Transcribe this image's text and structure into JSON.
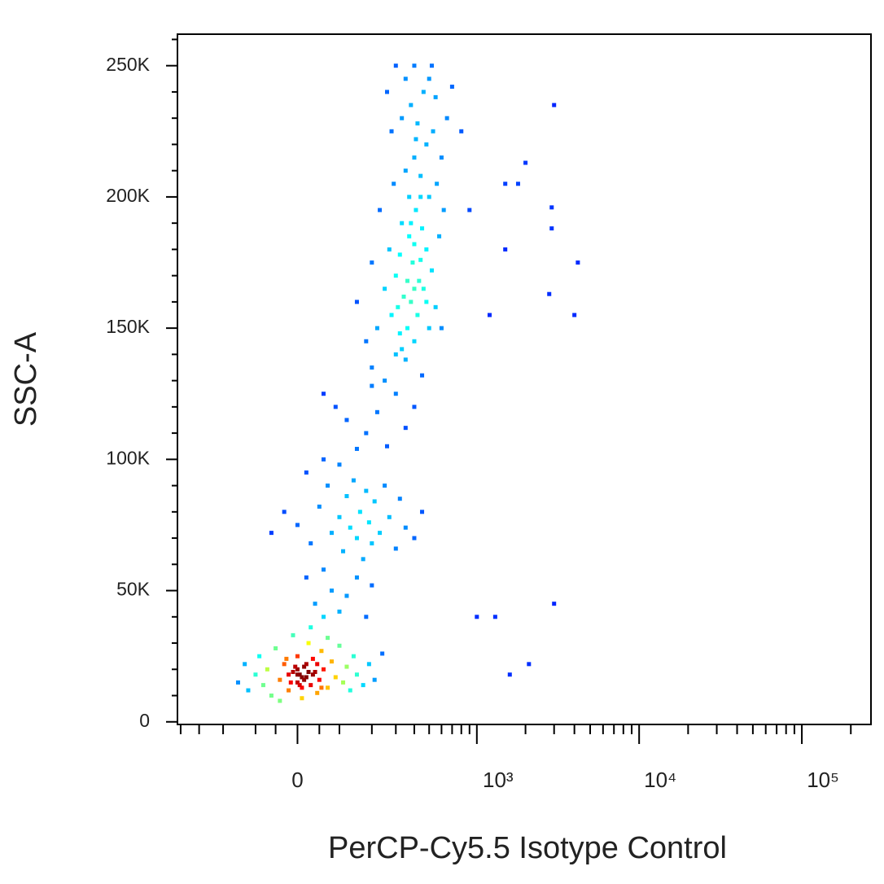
{
  "chart_data": {
    "type": "scatter",
    "x_label": "PerCP-Cy5.5 Isotype Control",
    "y_label": "SSC-A",
    "xscale": "biexponential",
    "xlim": [
      -420,
      266000
    ],
    "ylim": [
      -1000,
      262000
    ],
    "xticks": [
      0,
      {
        "value": 1000,
        "label": "10³"
      },
      {
        "value": 10000,
        "label": "10⁴"
      },
      {
        "value": 100000,
        "label": "10⁵"
      }
    ],
    "xminorticks": [
      -400,
      -300,
      -200,
      -100,
      -50,
      50,
      100,
      200,
      300,
      400,
      500,
      600,
      700,
      800,
      900,
      2000,
      3000,
      4000,
      5000,
      6000,
      7000,
      8000,
      9000,
      20000,
      30000,
      40000,
      50000,
      60000,
      70000,
      80000,
      90000,
      200000
    ],
    "yticks": [
      0,
      {
        "value": 50000,
        "label": "50K"
      },
      {
        "value": 100000,
        "label": "100K"
      },
      {
        "value": 150000,
        "label": "150K"
      },
      {
        "value": 200000,
        "label": "200K"
      },
      {
        "value": 250000,
        "label": "250K"
      }
    ],
    "yminorticks": [
      10000,
      20000,
      30000,
      40000,
      60000,
      70000,
      80000,
      90000,
      110000,
      120000,
      130000,
      140000,
      160000,
      170000,
      180000,
      190000,
      210000,
      220000,
      230000,
      240000,
      260000
    ],
    "x": [
      -150,
      -130,
      -120,
      -100,
      -90,
      -80,
      -70,
      -60,
      -50,
      -40,
      -30,
      -20,
      -10,
      0,
      0,
      5,
      10,
      15,
      20,
      25,
      30,
      35,
      40,
      45,
      50,
      55,
      60,
      70,
      80,
      90,
      100,
      110,
      120,
      130,
      140,
      150,
      170,
      190,
      210,
      240,
      -10,
      30,
      60,
      -40,
      10,
      70,
      0,
      10,
      -20,
      20,
      5,
      -5,
      15,
      25,
      -15,
      35,
      45,
      -25,
      55,
      0,
      40,
      80,
      100,
      150,
      60,
      120,
      180,
      200,
      20,
      0,
      30,
      50,
      70,
      80,
      100,
      110,
      120,
      130,
      140,
      150,
      160,
      170,
      180,
      190,
      200,
      210,
      230,
      250,
      270,
      300,
      320,
      350,
      400,
      450,
      -30,
      -60,
      20,
      60,
      100,
      150,
      180,
      220,
      260,
      300,
      120,
      90,
      350,
      200,
      400,
      60,
      200,
      250,
      300,
      350,
      400,
      450,
      500,
      180,
      220,
      280,
      320,
      380,
      420,
      460,
      550,
      600,
      250,
      300,
      340,
      390,
      430,
      480,
      520,
      580,
      150,
      200,
      270,
      330,
      370,
      410,
      450,
      500,
      560,
      620,
      230,
      290,
      350,
      400,
      440,
      480,
      530,
      600,
      280,
      330,
      380,
      420,
      460,
      500,
      550,
      650,
      350,
      400,
      520,
      700,
      300,
      260,
      320,
      360,
      400,
      440,
      310,
      360,
      400,
      370,
      410,
      440,
      480,
      330,
      380,
      3000,
      4200,
      4000,
      2800,
      3000,
      1000,
      1300,
      1600,
      2100,
      1200,
      1500,
      1800,
      2000,
      2900,
      2900,
      800,
      900,
      1500
    ],
    "y": [
      15000,
      22000,
      12000,
      18000,
      25000,
      14000,
      20000,
      10000,
      28000,
      16000,
      22000,
      12000,
      19000,
      15000,
      25000,
      18000,
      13000,
      21000,
      17000,
      30000,
      14000,
      24000,
      19000,
      11000,
      16000,
      27000,
      20000,
      13000,
      23000,
      17000,
      29000,
      15000,
      21000,
      12000,
      25000,
      18000,
      14000,
      22000,
      16000,
      26000,
      33000,
      36000,
      40000,
      8000,
      9000,
      32000,
      20000,
      17000,
      18000,
      22000,
      14000,
      21000,
      16000,
      19000,
      15000,
      18000,
      22000,
      24000,
      13000,
      18000,
      45000,
      50000,
      42000,
      55000,
      58000,
      48000,
      40000,
      52000,
      55000,
      75000,
      68000,
      82000,
      90000,
      72000,
      78000,
      65000,
      86000,
      74000,
      92000,
      70000,
      80000,
      62000,
      88000,
      76000,
      68000,
      84000,
      72000,
      90000,
      78000,
      66000,
      85000,
      74000,
      70000,
      80000,
      80000,
      72000,
      95000,
      100000,
      98000,
      104000,
      110000,
      118000,
      105000,
      125000,
      115000,
      120000,
      112000,
      128000,
      120000,
      125000,
      135000,
      130000,
      140000,
      138000,
      145000,
      132000,
      150000,
      145000,
      150000,
      155000,
      148000,
      160000,
      155000,
      165000,
      158000,
      150000,
      165000,
      170000,
      162000,
      175000,
      168000,
      180000,
      172000,
      185000,
      160000,
      175000,
      180000,
      190000,
      185000,
      195000,
      188000,
      200000,
      205000,
      195000,
      195000,
      205000,
      210000,
      215000,
      208000,
      220000,
      225000,
      215000,
      225000,
      230000,
      235000,
      228000,
      240000,
      245000,
      238000,
      230000,
      245000,
      250000,
      250000,
      242000,
      250000,
      240000,
      178000,
      168000,
      182000,
      176000,
      158000,
      150000,
      165000,
      200000,
      222000,
      200000,
      160000,
      142000,
      190000,
      235000,
      175000,
      155000,
      163000,
      45000,
      40000,
      40000,
      18000,
      22000,
      155000,
      205000,
      205000,
      213000,
      196000,
      188000,
      225000,
      195000,
      180000
    ]
  }
}
